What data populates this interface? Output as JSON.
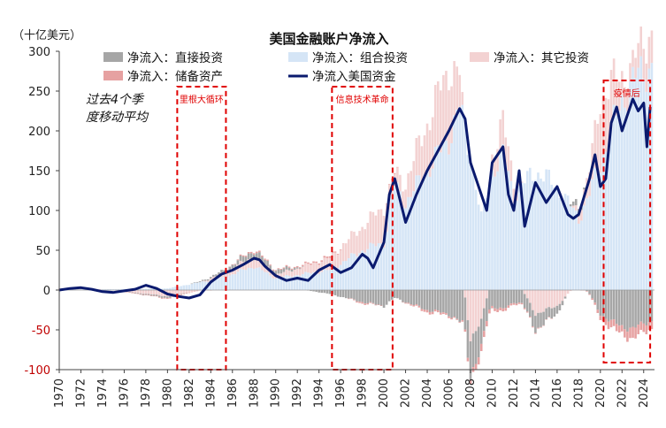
{
  "chart_data": {
    "type": "bar",
    "title": "美国金融账户净流入",
    "ylabel": "（十亿美元）",
    "note": "过去4个季度移动平均",
    "ylim": [
      -100,
      300
    ],
    "y_ticks": [
      -100,
      -50,
      0,
      50,
      100,
      150,
      200,
      250,
      300
    ],
    "xlim": [
      1970,
      2025
    ],
    "x_ticks": [
      "1970",
      "1972",
      "1974",
      "1976",
      "1978",
      "1980",
      "1982",
      "1984",
      "1986",
      "1988",
      "1990",
      "1992",
      "1994",
      "1996",
      "1998",
      "2000",
      "2002",
      "2004",
      "2006",
      "2008",
      "2010",
      "2012",
      "2014",
      "2016",
      "2018",
      "2020",
      "2022",
      "2024"
    ],
    "legend": [
      {
        "label": "净流入：直接投资",
        "color": "#a6a6a6",
        "kind": "bar"
      },
      {
        "label": "净流入：组合投资",
        "color": "#d5e5f6",
        "kind": "bar"
      },
      {
        "label": "净流入：其它投资",
        "color": "#f3d2d2",
        "kind": "bar"
      },
      {
        "label": "净流入：储备资产",
        "color": "#e6a1a1",
        "kind": "bar"
      },
      {
        "label": "净流入美国资金",
        "color": "#0a1a6e",
        "kind": "line"
      }
    ],
    "periods": [
      {
        "label": "里根大循环",
        "start": 1980.9,
        "end": 1985.4
      },
      {
        "label": "信息技术革命",
        "start": 1995.2,
        "end": 2000.8
      },
      {
        "label": "疫情后",
        "start": 2020.3,
        "end": 2024.6
      }
    ],
    "series": [
      {
        "name": "净流入美国资金",
        "x": [
          1970,
          1971,
          1972,
          1973,
          1974,
          1975,
          1976,
          1977,
          1978,
          1979,
          1980,
          1981,
          1982,
          1983,
          1984,
          1985,
          1986,
          1987,
          1988,
          1988.5,
          1989,
          1990,
          1991,
          1992,
          1993,
          1994,
          1995,
          1996,
          1997,
          1998,
          1998.5,
          1999,
          2000,
          2000.5,
          2001,
          2002,
          2003,
          2004,
          2005,
          2006,
          2007,
          2007.5,
          2008,
          2008.5,
          2009,
          2009.5,
          2010,
          2011,
          2011.5,
          2012,
          2012.5,
          2013,
          2014,
          2015,
          2016,
          2017,
          2017.5,
          2018,
          2019,
          2019.5,
          2020,
          2020.5,
          2021,
          2021.5,
          2022,
          2022.5,
          2023,
          2023.5,
          2024,
          2024.3,
          2024.6
        ],
        "values": [
          0,
          2,
          3,
          1,
          -2,
          -3,
          -1,
          1,
          6,
          2,
          -5,
          -8,
          -10,
          -6,
          10,
          20,
          25,
          32,
          40,
          38,
          30,
          18,
          12,
          15,
          12,
          25,
          32,
          22,
          28,
          45,
          40,
          28,
          60,
          120,
          140,
          85,
          120,
          150,
          175,
          200,
          228,
          215,
          160,
          140,
          120,
          100,
          160,
          180,
          120,
          100,
          150,
          80,
          135,
          110,
          130,
          95,
          90,
          95,
          140,
          170,
          130,
          140,
          210,
          230,
          200,
          220,
          240,
          225,
          235,
          180,
          230
        ]
      },
      {
        "name": "净流入：组合投资",
        "x": [
          1970,
          1975,
          1980,
          1985,
          1988,
          1990,
          1995,
          1998,
          2000,
          2001,
          2002,
          2004,
          2006,
          2007,
          2008,
          2009,
          2010,
          2011,
          2012,
          2014,
          2016,
          2018,
          2019,
          2020,
          2021,
          2022,
          2023,
          2024
        ],
        "values": [
          1,
          1,
          2,
          15,
          30,
          15,
          25,
          50,
          60,
          130,
          110,
          150,
          190,
          230,
          170,
          90,
          150,
          170,
          120,
          150,
          130,
          90,
          120,
          160,
          200,
          240,
          260,
          280
        ]
      },
      {
        "name": "净流入：其它投资",
        "x": [
          1970,
          1975,
          1980,
          1985,
          1988,
          1990,
          1995,
          1998,
          2000,
          2001,
          2002,
          2004,
          2006,
          2007,
          2008,
          2009,
          2010,
          2011,
          2012,
          2014,
          2016,
          2018,
          2019,
          2020,
          2021,
          2022,
          2023,
          2024
        ],
        "values": [
          1,
          0,
          -8,
          5,
          12,
          4,
          15,
          30,
          45,
          15,
          25,
          60,
          90,
          40,
          -60,
          -40,
          20,
          40,
          20,
          -30,
          -20,
          10,
          30,
          80,
          60,
          30,
          20,
          40
        ]
      },
      {
        "name": "净流入：直接投资",
        "x": [
          1970,
          1975,
          1980,
          1985,
          1988,
          1990,
          1995,
          1998,
          2000,
          2001,
          2002,
          2004,
          2006,
          2007,
          2008,
          2009,
          2010,
          2011,
          2012,
          2014,
          2016,
          2018,
          2019,
          2020,
          2021,
          2022,
          2023,
          2024
        ],
        "values": [
          0,
          0,
          -2,
          3,
          8,
          6,
          -5,
          -15,
          -20,
          -10,
          -15,
          -25,
          -30,
          -40,
          -45,
          -35,
          -20,
          -25,
          -15,
          -20,
          -10,
          10,
          -5,
          -30,
          -40,
          -45,
          -50,
          -40
        ]
      },
      {
        "name": "净流入：储备资产",
        "x": [
          1970,
          1975,
          1980,
          1985,
          1988,
          1990,
          1995,
          1998,
          2000,
          2001,
          2002,
          2004,
          2006,
          2007,
          2008,
          2009,
          2010,
          2011,
          2012,
          2014,
          2016,
          2018,
          2019,
          2020,
          2021,
          2022,
          2023,
          2024
        ],
        "values": [
          0,
          0,
          -1,
          0,
          2,
          1,
          2,
          -2,
          0,
          1,
          -1,
          -3,
          -2,
          -1,
          -5,
          -10,
          -3,
          -4,
          -2,
          -1,
          0,
          0,
          -1,
          -5,
          -10,
          -8,
          -15,
          -10
        ]
      }
    ],
    "bar_stack_order": [
      "净流入：组合投资",
      "净流入：其它投资",
      "净流入：直接投资",
      "净流入：储备资产"
    ]
  }
}
